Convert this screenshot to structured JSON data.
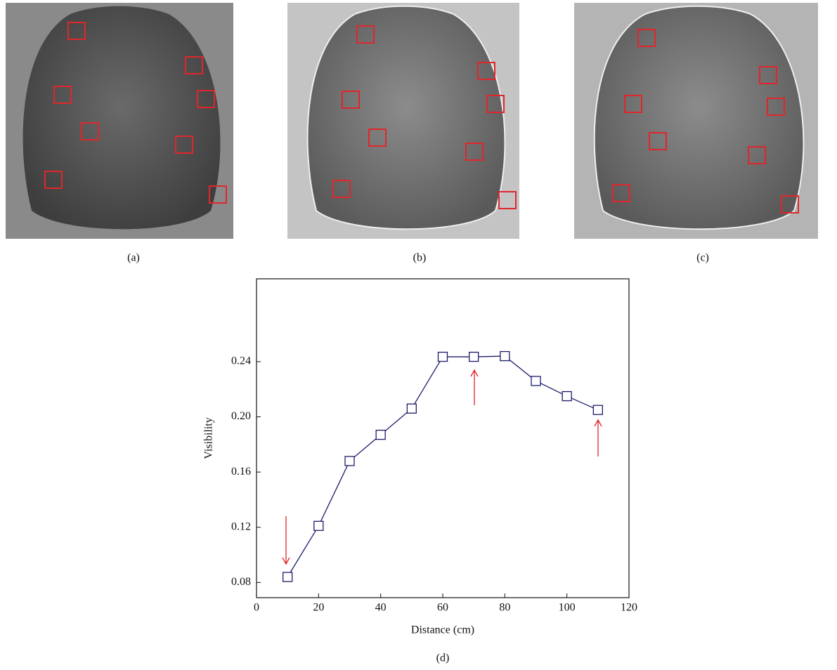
{
  "panels": [
    {
      "label": "(a)"
    },
    {
      "label": "(b)"
    },
    {
      "label": "(c)"
    }
  ],
  "chart_data": {
    "type": "line",
    "label": "(d)",
    "x_label": "Distance (cm)",
    "y_label": "Visibility",
    "x": [
      10,
      20,
      30,
      40,
      50,
      60,
      70,
      80,
      90,
      100,
      110
    ],
    "series": [
      {
        "color": "#1c1c6b",
        "values": [
          0.084,
          0.121,
          0.168,
          0.187,
          0.206,
          0.2435,
          0.2435,
          0.244,
          0.226,
          0.215,
          0.205
        ]
      }
    ],
    "xlim": [
      0,
      120
    ],
    "xticks": [
      0,
      20,
      40,
      60,
      80,
      100,
      120
    ],
    "ylim": [
      0.069,
      0.3
    ],
    "yticks": [
      {
        "value": 0.08,
        "label": "0.08"
      },
      {
        "value": 0.12,
        "label": "0.12"
      },
      {
        "value": 0.16,
        "label": "0.16"
      },
      {
        "value": 0.2,
        "label": "0.20"
      },
      {
        "value": 0.24,
        "label": "0.24"
      }
    ],
    "annotation_color": "#e0262b"
  }
}
